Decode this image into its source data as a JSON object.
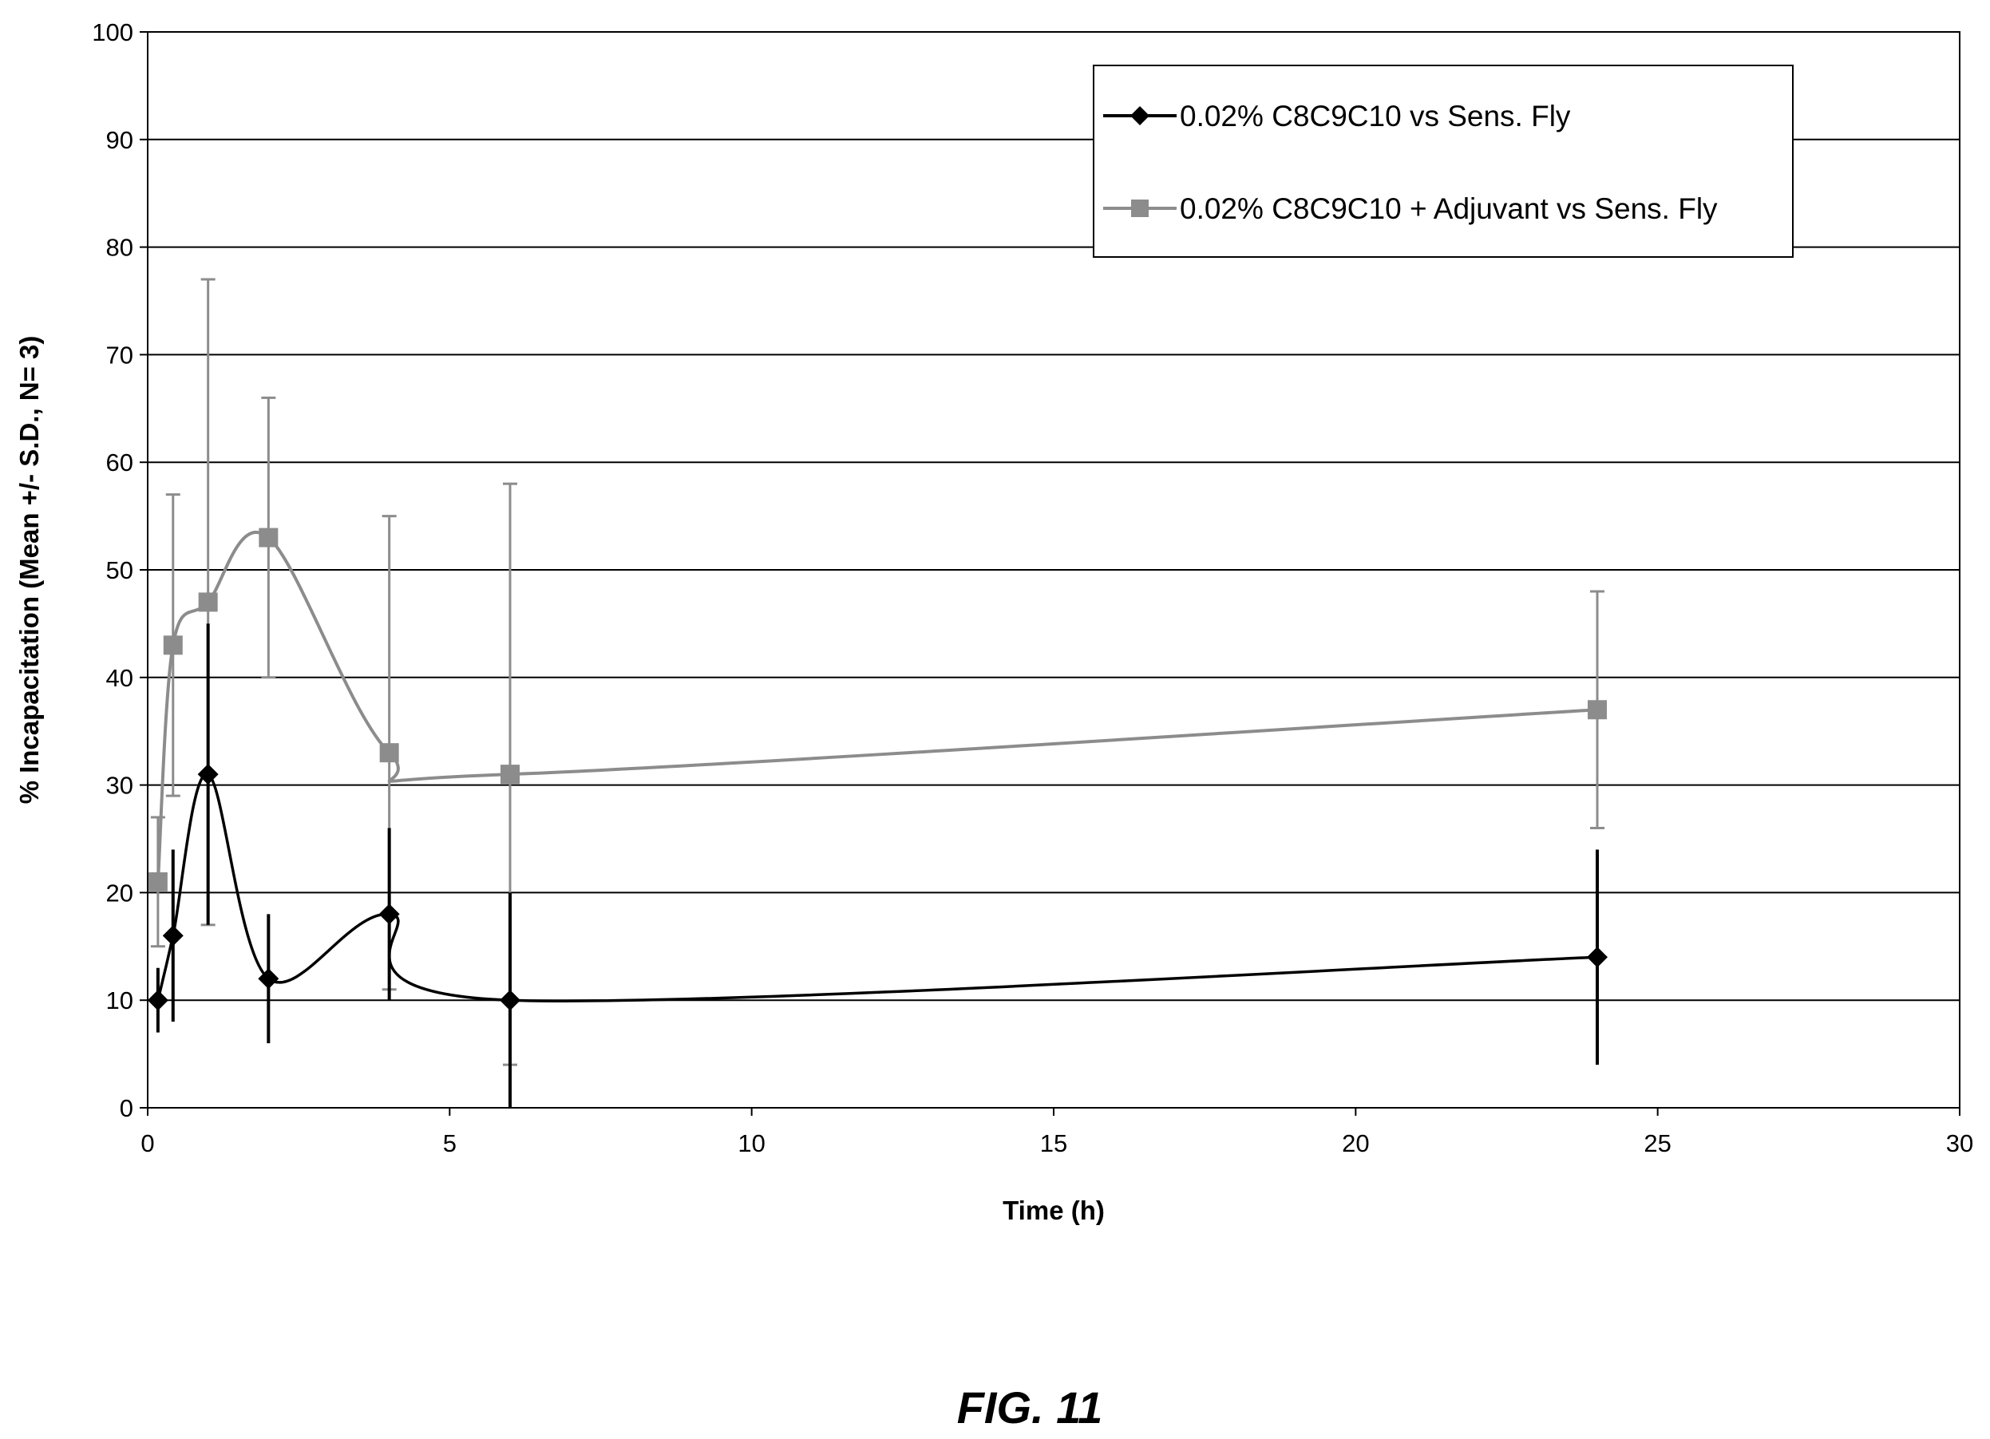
{
  "chart_data": {
    "type": "line",
    "title": "",
    "xlabel": "Time (h)",
    "ylabel": "% Incapacitation (Mean +/- S.D., N= 3)",
    "xlim": [
      0,
      30
    ],
    "ylim": [
      0,
      100
    ],
    "xticks": [
      0,
      5,
      10,
      15,
      20,
      25,
      30
    ],
    "yticks": [
      0,
      10,
      20,
      30,
      40,
      50,
      60,
      70,
      80,
      90,
      100
    ],
    "grid": "horizontal",
    "legend_position": "top-right",
    "smoothed": true,
    "series": [
      {
        "name": "0.02% C8C9C10 vs Sens. Fly",
        "color": "#000000",
        "marker": "diamond",
        "x": [
          0.17,
          0.42,
          1,
          2,
          4,
          6,
          24
        ],
        "y": [
          10,
          16,
          31,
          12,
          18,
          10,
          14
        ],
        "err": [
          3,
          8,
          14,
          6,
          8,
          10,
          10
        ]
      },
      {
        "name": "0.02% C8C9C10 + Adjuvant vs Sens. Fly",
        "color": "#8c8c8c",
        "marker": "square",
        "x": [
          0.17,
          0.42,
          1,
          2,
          4,
          6,
          24
        ],
        "y": [
          21,
          43,
          47,
          53,
          33,
          31,
          37
        ],
        "err": [
          6,
          14,
          30,
          13,
          22,
          27,
          11
        ]
      }
    ]
  },
  "caption": "FIG. 11"
}
